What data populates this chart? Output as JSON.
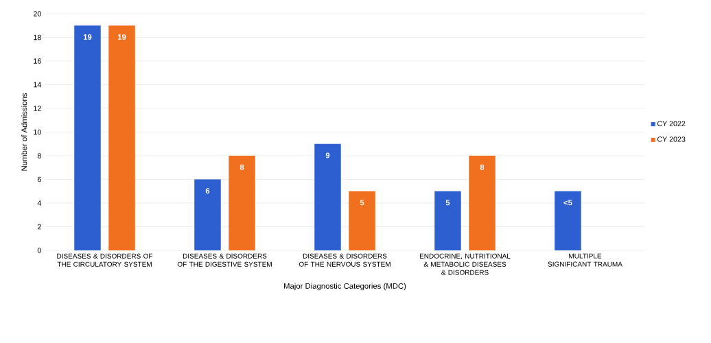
{
  "chart_data": {
    "type": "bar",
    "xlabel": "Major Diagnostic Categories (MDC)",
    "ylabel": "Number of Admissions",
    "categories": [
      "DISEASES & DISORDERS OF THE CIRCULATORY SYSTEM",
      "DISEASES & DISORDERS OF THE DIGESTIVE SYSTEM",
      "DISEASES & DISORDERS OF THE NERVOUS SYSTEM",
      "ENDOCRINE, NUTRITIONAL & METABOLIC DISEASES & DISORDERS",
      "MULTIPLE SIGNIFICANT TRAUMA"
    ],
    "series": [
      {
        "name": "CY 2022",
        "color": "#2e5fd0",
        "values": [
          19,
          6,
          9,
          5,
          5
        ],
        "value_labels": [
          "19",
          "6",
          "9",
          "5",
          "<5"
        ]
      },
      {
        "name": "CY 2023",
        "color": "#f07020",
        "values": [
          19,
          8,
          5,
          8,
          null
        ],
        "value_labels": [
          "19",
          "8",
          "5",
          "8",
          null
        ]
      }
    ],
    "ylim": [
      0,
      20
    ],
    "yticks": [
      0,
      2,
      4,
      6,
      8,
      10,
      12,
      14,
      16,
      18,
      20
    ],
    "grid": "y",
    "legend": "right"
  }
}
